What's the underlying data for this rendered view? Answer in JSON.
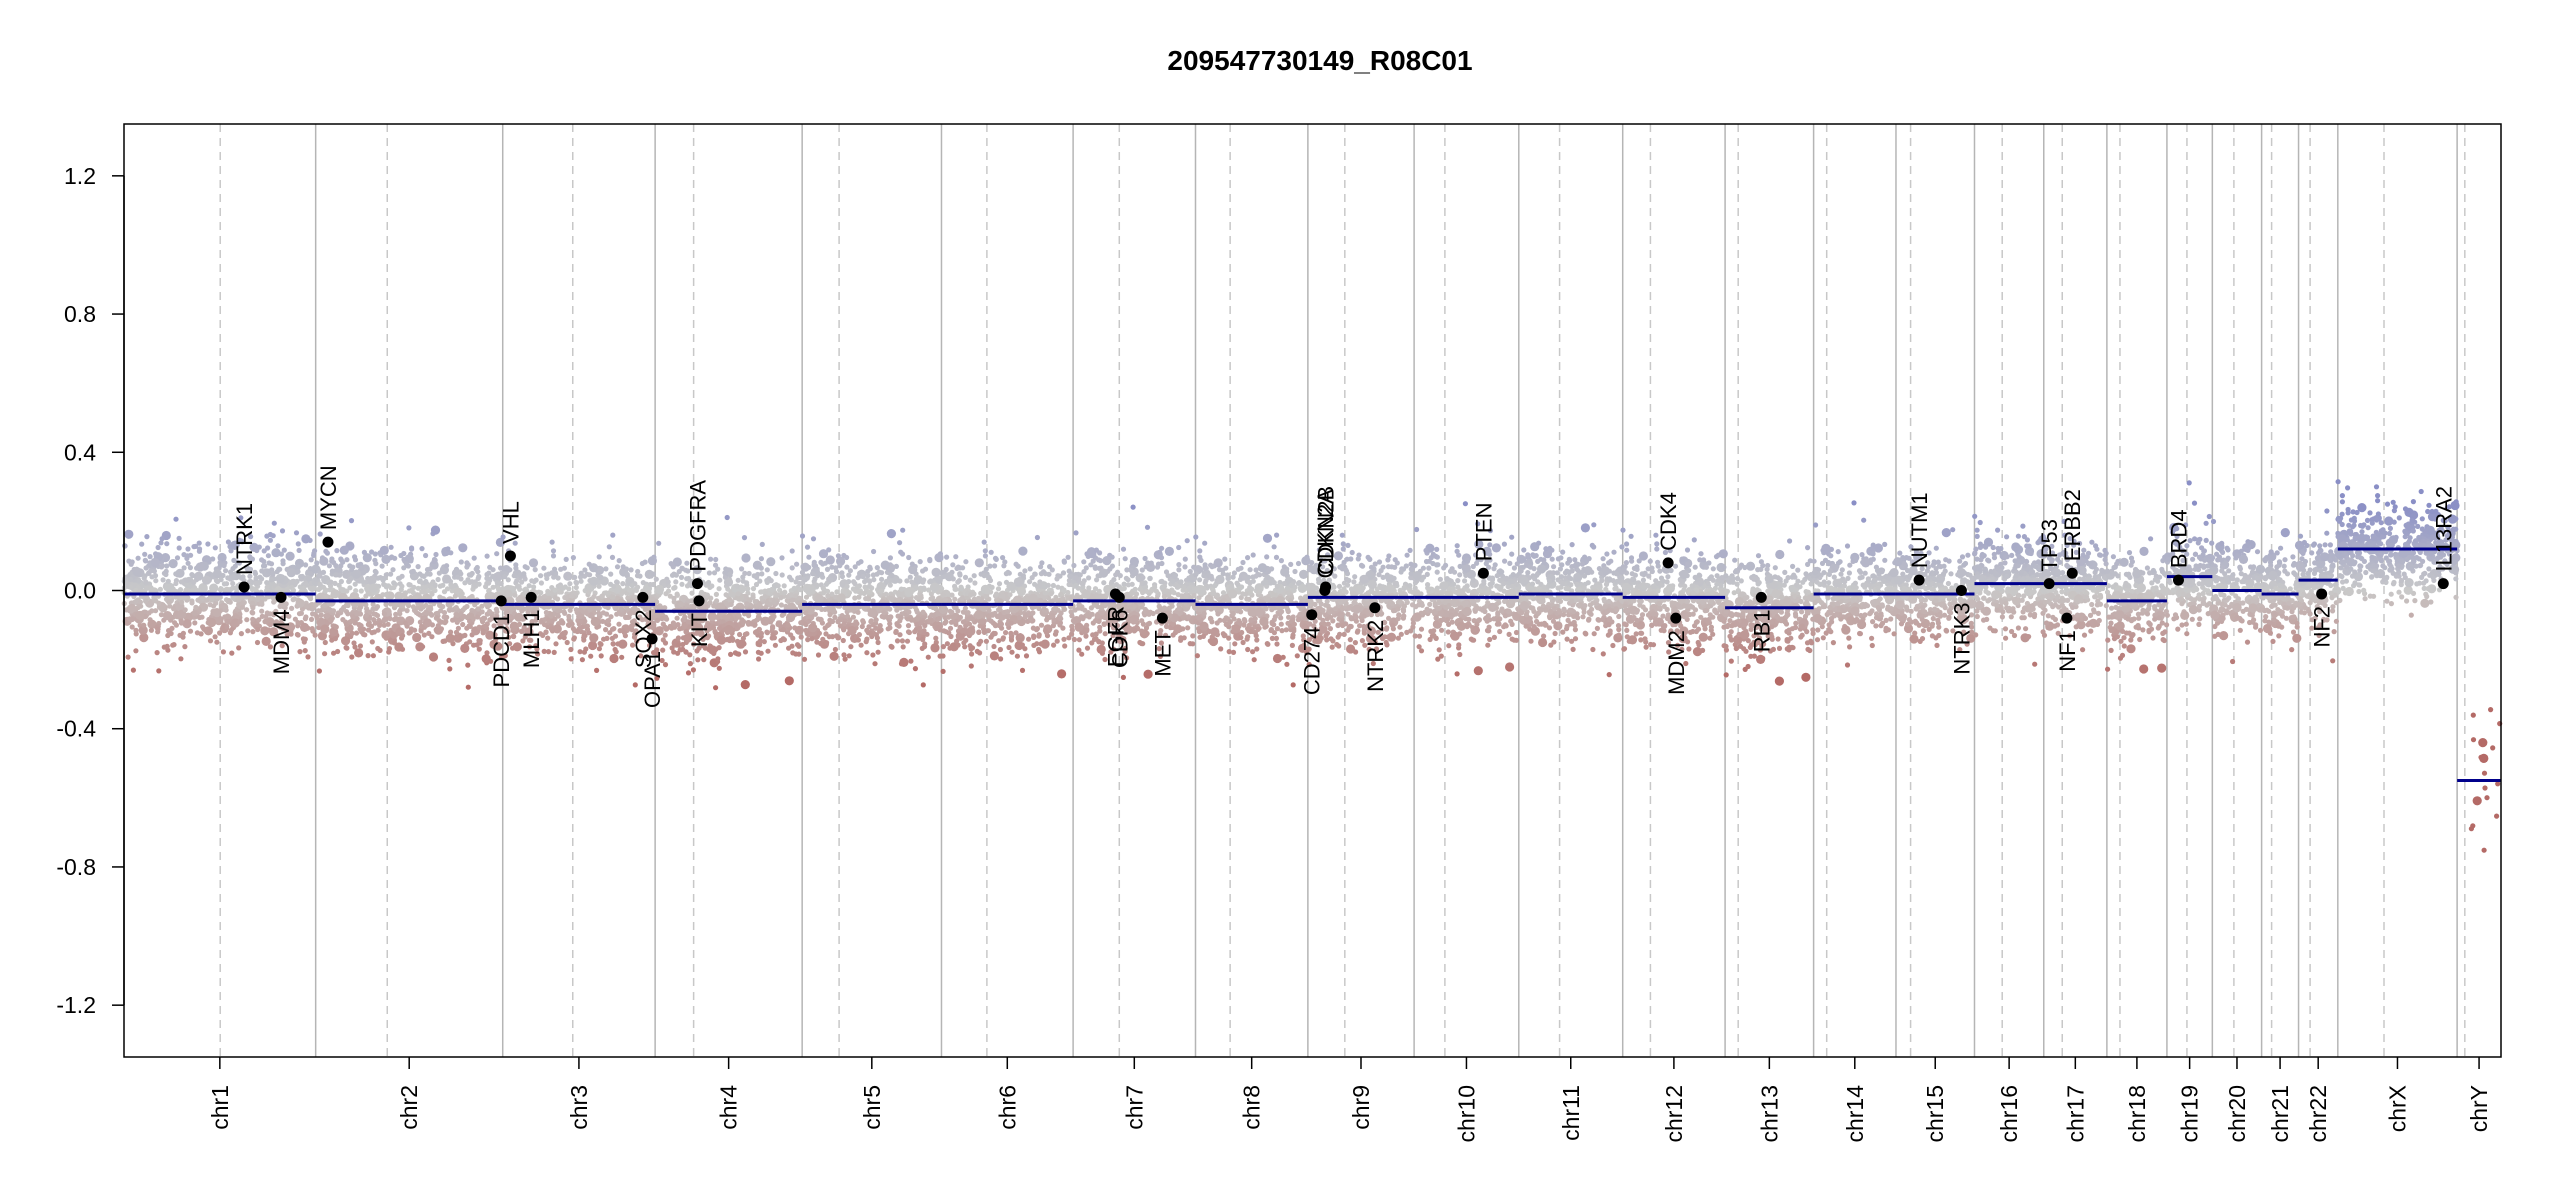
{
  "chart_data": {
    "type": "scatter",
    "title": "209547730149_R08C01",
    "xlabel": "",
    "ylabel": "",
    "ylim": [
      -1.35,
      1.35
    ],
    "y_ticks": [
      -1.2,
      -0.8,
      -0.4,
      0.0,
      0.4,
      0.8,
      1.2
    ],
    "y_tick_labels": [
      "-1.2",
      "-0.8",
      "-0.4",
      "0.0",
      "0.4",
      "0.8",
      "1.2"
    ],
    "grid": false,
    "colors": {
      "gain": "#8a8fc6",
      "loss": "#b46a66",
      "neutral": "#c9c9c9",
      "segment": "#00008b",
      "gene_point": "#000000",
      "chrom_boundary": "#b5b5b5",
      "centromere": "#c8c8c8"
    },
    "chromosomes": [
      {
        "name": "chr1",
        "start": 0,
        "end": 249,
        "centromere": 125,
        "segment": -0.01,
        "spread": 0.075
      },
      {
        "name": "chr2",
        "start": 249,
        "end": 492,
        "centromere": 342,
        "segment": -0.03,
        "spread": 0.075
      },
      {
        "name": "chr3",
        "start": 492,
        "end": 690,
        "centromere": 583,
        "segment": -0.04,
        "spread": 0.07
      },
      {
        "name": "chr4",
        "start": 690,
        "end": 881,
        "centromere": 740,
        "segment": -0.06,
        "spread": 0.07
      },
      {
        "name": "chr5",
        "start": 881,
        "end": 1062,
        "centromere": 929,
        "segment": -0.04,
        "spread": 0.075
      },
      {
        "name": "chr6",
        "start": 1062,
        "end": 1233,
        "centromere": 1121,
        "segment": -0.04,
        "spread": 0.07
      },
      {
        "name": "chr7",
        "start": 1233,
        "end": 1392,
        "centromere": 1293,
        "segment": -0.03,
        "spread": 0.07
      },
      {
        "name": "chr8",
        "start": 1392,
        "end": 1538,
        "centromere": 1437,
        "segment": -0.04,
        "spread": 0.07
      },
      {
        "name": "chr9",
        "start": 1538,
        "end": 1676,
        "centromere": 1586,
        "segment": -0.02,
        "spread": 0.07
      },
      {
        "name": "chr10",
        "start": 1676,
        "end": 1812,
        "centromere": 1716,
        "segment": -0.02,
        "spread": 0.07
      },
      {
        "name": "chr11",
        "start": 1812,
        "end": 1947,
        "centromere": 1865,
        "segment": -0.01,
        "spread": 0.07
      },
      {
        "name": "chr12",
        "start": 1947,
        "end": 2080,
        "centromere": 1983,
        "segment": -0.02,
        "spread": 0.07
      },
      {
        "name": "chr13",
        "start": 2080,
        "end": 2195,
        "centromere": 2097,
        "segment": -0.05,
        "spread": 0.07
      },
      {
        "name": "chr14",
        "start": 2195,
        "end": 2302,
        "centromere": 2212,
        "segment": -0.01,
        "spread": 0.065
      },
      {
        "name": "chr15",
        "start": 2302,
        "end": 2404,
        "centromere": 2321,
        "segment": -0.01,
        "spread": 0.065
      },
      {
        "name": "chr16",
        "start": 2404,
        "end": 2494,
        "centromere": 2440,
        "segment": 0.02,
        "spread": 0.07
      },
      {
        "name": "chr17",
        "start": 2494,
        "end": 2576,
        "centromere": 2518,
        "segment": 0.02,
        "spread": 0.07
      },
      {
        "name": "chr18",
        "start": 2576,
        "end": 2654,
        "centromere": 2593,
        "segment": -0.03,
        "spread": 0.065
      },
      {
        "name": "chr19",
        "start": 2654,
        "end": 2713,
        "centromere": 2680,
        "segment": 0.04,
        "spread": 0.07
      },
      {
        "name": "chr20",
        "start": 2713,
        "end": 2777,
        "centromere": 2741,
        "segment": 0.0,
        "spread": 0.065
      },
      {
        "name": "chr21",
        "start": 2777,
        "end": 2825,
        "centromere": 2790,
        "segment": -0.01,
        "spread": 0.065
      },
      {
        "name": "chr22",
        "start": 2825,
        "end": 2876,
        "centromere": 2840,
        "segment": 0.03,
        "spread": 0.07
      },
      {
        "name": "chrX",
        "start": 2876,
        "end": 3031,
        "centromere": 2936,
        "segment": 0.12,
        "spread": 0.07
      },
      {
        "name": "chrY",
        "start": 3031,
        "end": 3088,
        "centromere": 3041,
        "segment": -0.55,
        "spread": 0.12
      }
    ],
    "genes": [
      {
        "name": "NTRK1",
        "pos": 156,
        "value": 0.01,
        "label_side": "above"
      },
      {
        "name": "MDM4",
        "pos": 204,
        "value": -0.02,
        "label_side": "below"
      },
      {
        "name": "MYCN",
        "pos": 265,
        "value": 0.14,
        "label_side": "above"
      },
      {
        "name": "VHL",
        "pos": 502,
        "value": 0.1,
        "label_side": "above"
      },
      {
        "name": "PDCD1",
        "pos": 490,
        "value": -0.03,
        "label_side": "below"
      },
      {
        "name": "MLH1",
        "pos": 529,
        "value": -0.02,
        "label_side": "below"
      },
      {
        "name": "SOX2",
        "pos": 674,
        "value": -0.02,
        "label_side": "below"
      },
      {
        "name": "OPA1",
        "pos": 686,
        "value": -0.14,
        "label_side": "below"
      },
      {
        "name": "PDGFRA",
        "pos": 745,
        "value": 0.02,
        "label_side": "above"
      },
      {
        "name": "KIT",
        "pos": 747,
        "value": -0.03,
        "label_side": "below"
      },
      {
        "name": "EGFR",
        "pos": 1288,
        "value": -0.01,
        "label_side": "below"
      },
      {
        "name": "CDK6",
        "pos": 1293,
        "value": -0.02,
        "label_side": "below"
      },
      {
        "name": "MET",
        "pos": 1349,
        "value": -0.08,
        "label_side": "below"
      },
      {
        "name": "CD274",
        "pos": 1543,
        "value": -0.07,
        "label_side": "below"
      },
      {
        "name": "CDKN2A",
        "pos": 1560,
        "value": 0.0,
        "label_side": "above"
      },
      {
        "name": "CDKN2B",
        "pos": 1561,
        "value": 0.01,
        "label_side": "above"
      },
      {
        "name": "NTRK2",
        "pos": 1625,
        "value": -0.05,
        "label_side": "below"
      },
      {
        "name": "PTEN",
        "pos": 1766,
        "value": 0.05,
        "label_side": "above"
      },
      {
        "name": "CDK4",
        "pos": 2006,
        "value": 0.08,
        "label_side": "above"
      },
      {
        "name": "MDM2",
        "pos": 2016,
        "value": -0.08,
        "label_side": "below"
      },
      {
        "name": "RB1",
        "pos": 2127,
        "value": -0.02,
        "label_side": "below"
      },
      {
        "name": "NUTM1",
        "pos": 2332,
        "value": 0.03,
        "label_side": "above"
      },
      {
        "name": "NTRK3",
        "pos": 2387,
        "value": 0.0,
        "label_side": "below"
      },
      {
        "name": "TP53",
        "pos": 2501,
        "value": 0.02,
        "label_side": "above"
      },
      {
        "name": "ERBB2",
        "pos": 2531,
        "value": 0.05,
        "label_side": "above"
      },
      {
        "name": "NF1",
        "pos": 2524,
        "value": -0.08,
        "label_side": "below"
      },
      {
        "name": "BRD4",
        "pos": 2669,
        "value": 0.03,
        "label_side": "above"
      },
      {
        "name": "NF2",
        "pos": 2855,
        "value": -0.01,
        "label_side": "below"
      },
      {
        "name": "IL13RA2",
        "pos": 3013,
        "value": 0.02,
        "label_side": "above"
      }
    ]
  }
}
